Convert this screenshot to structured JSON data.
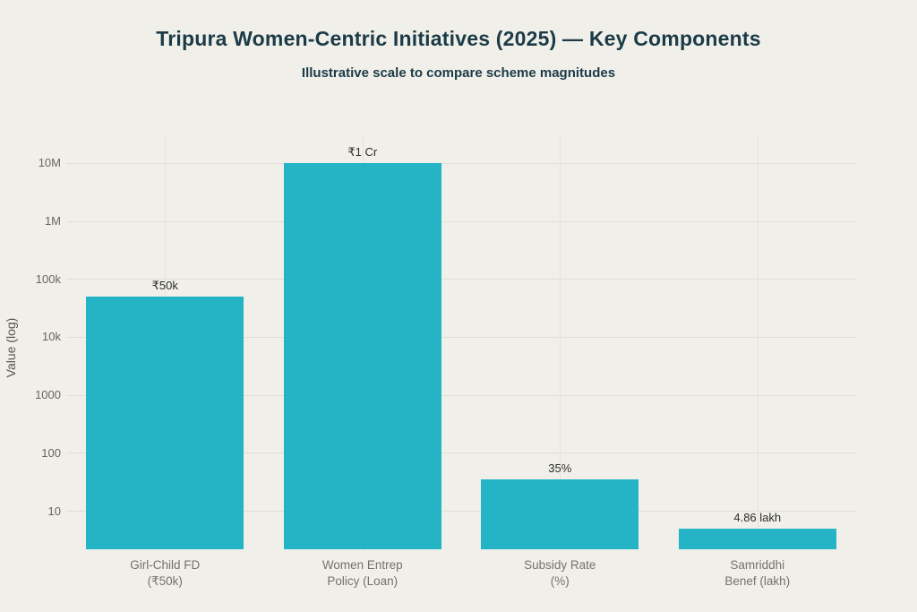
{
  "chart_data": {
    "type": "bar",
    "title": "Tripura Women-Centric Initiatives (2025) — Key Components",
    "subtitle": "Illustrative scale to compare scheme magnitudes",
    "ylabel": "Value (log)",
    "xlabel": "",
    "yscale": "log",
    "grid": true,
    "legend": false,
    "categories": [
      [
        "Girl-Child FD",
        "(₹50k)"
      ],
      [
        "Women Entrep",
        "Policy (Loan)"
      ],
      [
        "Subsidy Rate",
        "(%)"
      ],
      [
        "Samriddhi",
        "Benef (lakh)"
      ]
    ],
    "values": [
      50000,
      10000000,
      35,
      4.86
    ],
    "bar_labels": [
      "₹50k",
      "₹1 Cr",
      "35%",
      "4.86 lakh"
    ],
    "yticks": [
      {
        "label": "10",
        "value": 10
      },
      {
        "label": "100",
        "value": 100
      },
      {
        "label": "1000",
        "value": 1000
      },
      {
        "label": "10k",
        "value": 10000
      },
      {
        "label": "100k",
        "value": 100000
      },
      {
        "label": "1M",
        "value": 1000000
      },
      {
        "label": "10M",
        "value": 10000000
      }
    ],
    "colors": {
      "bar": "#24b4c6",
      "background": "#f0efe9",
      "title": "#1b3b47",
      "tick_label": "#66665f",
      "x_label": "#73736c",
      "annotation": "#2e2e2c",
      "gridline": "#dfded7"
    }
  }
}
